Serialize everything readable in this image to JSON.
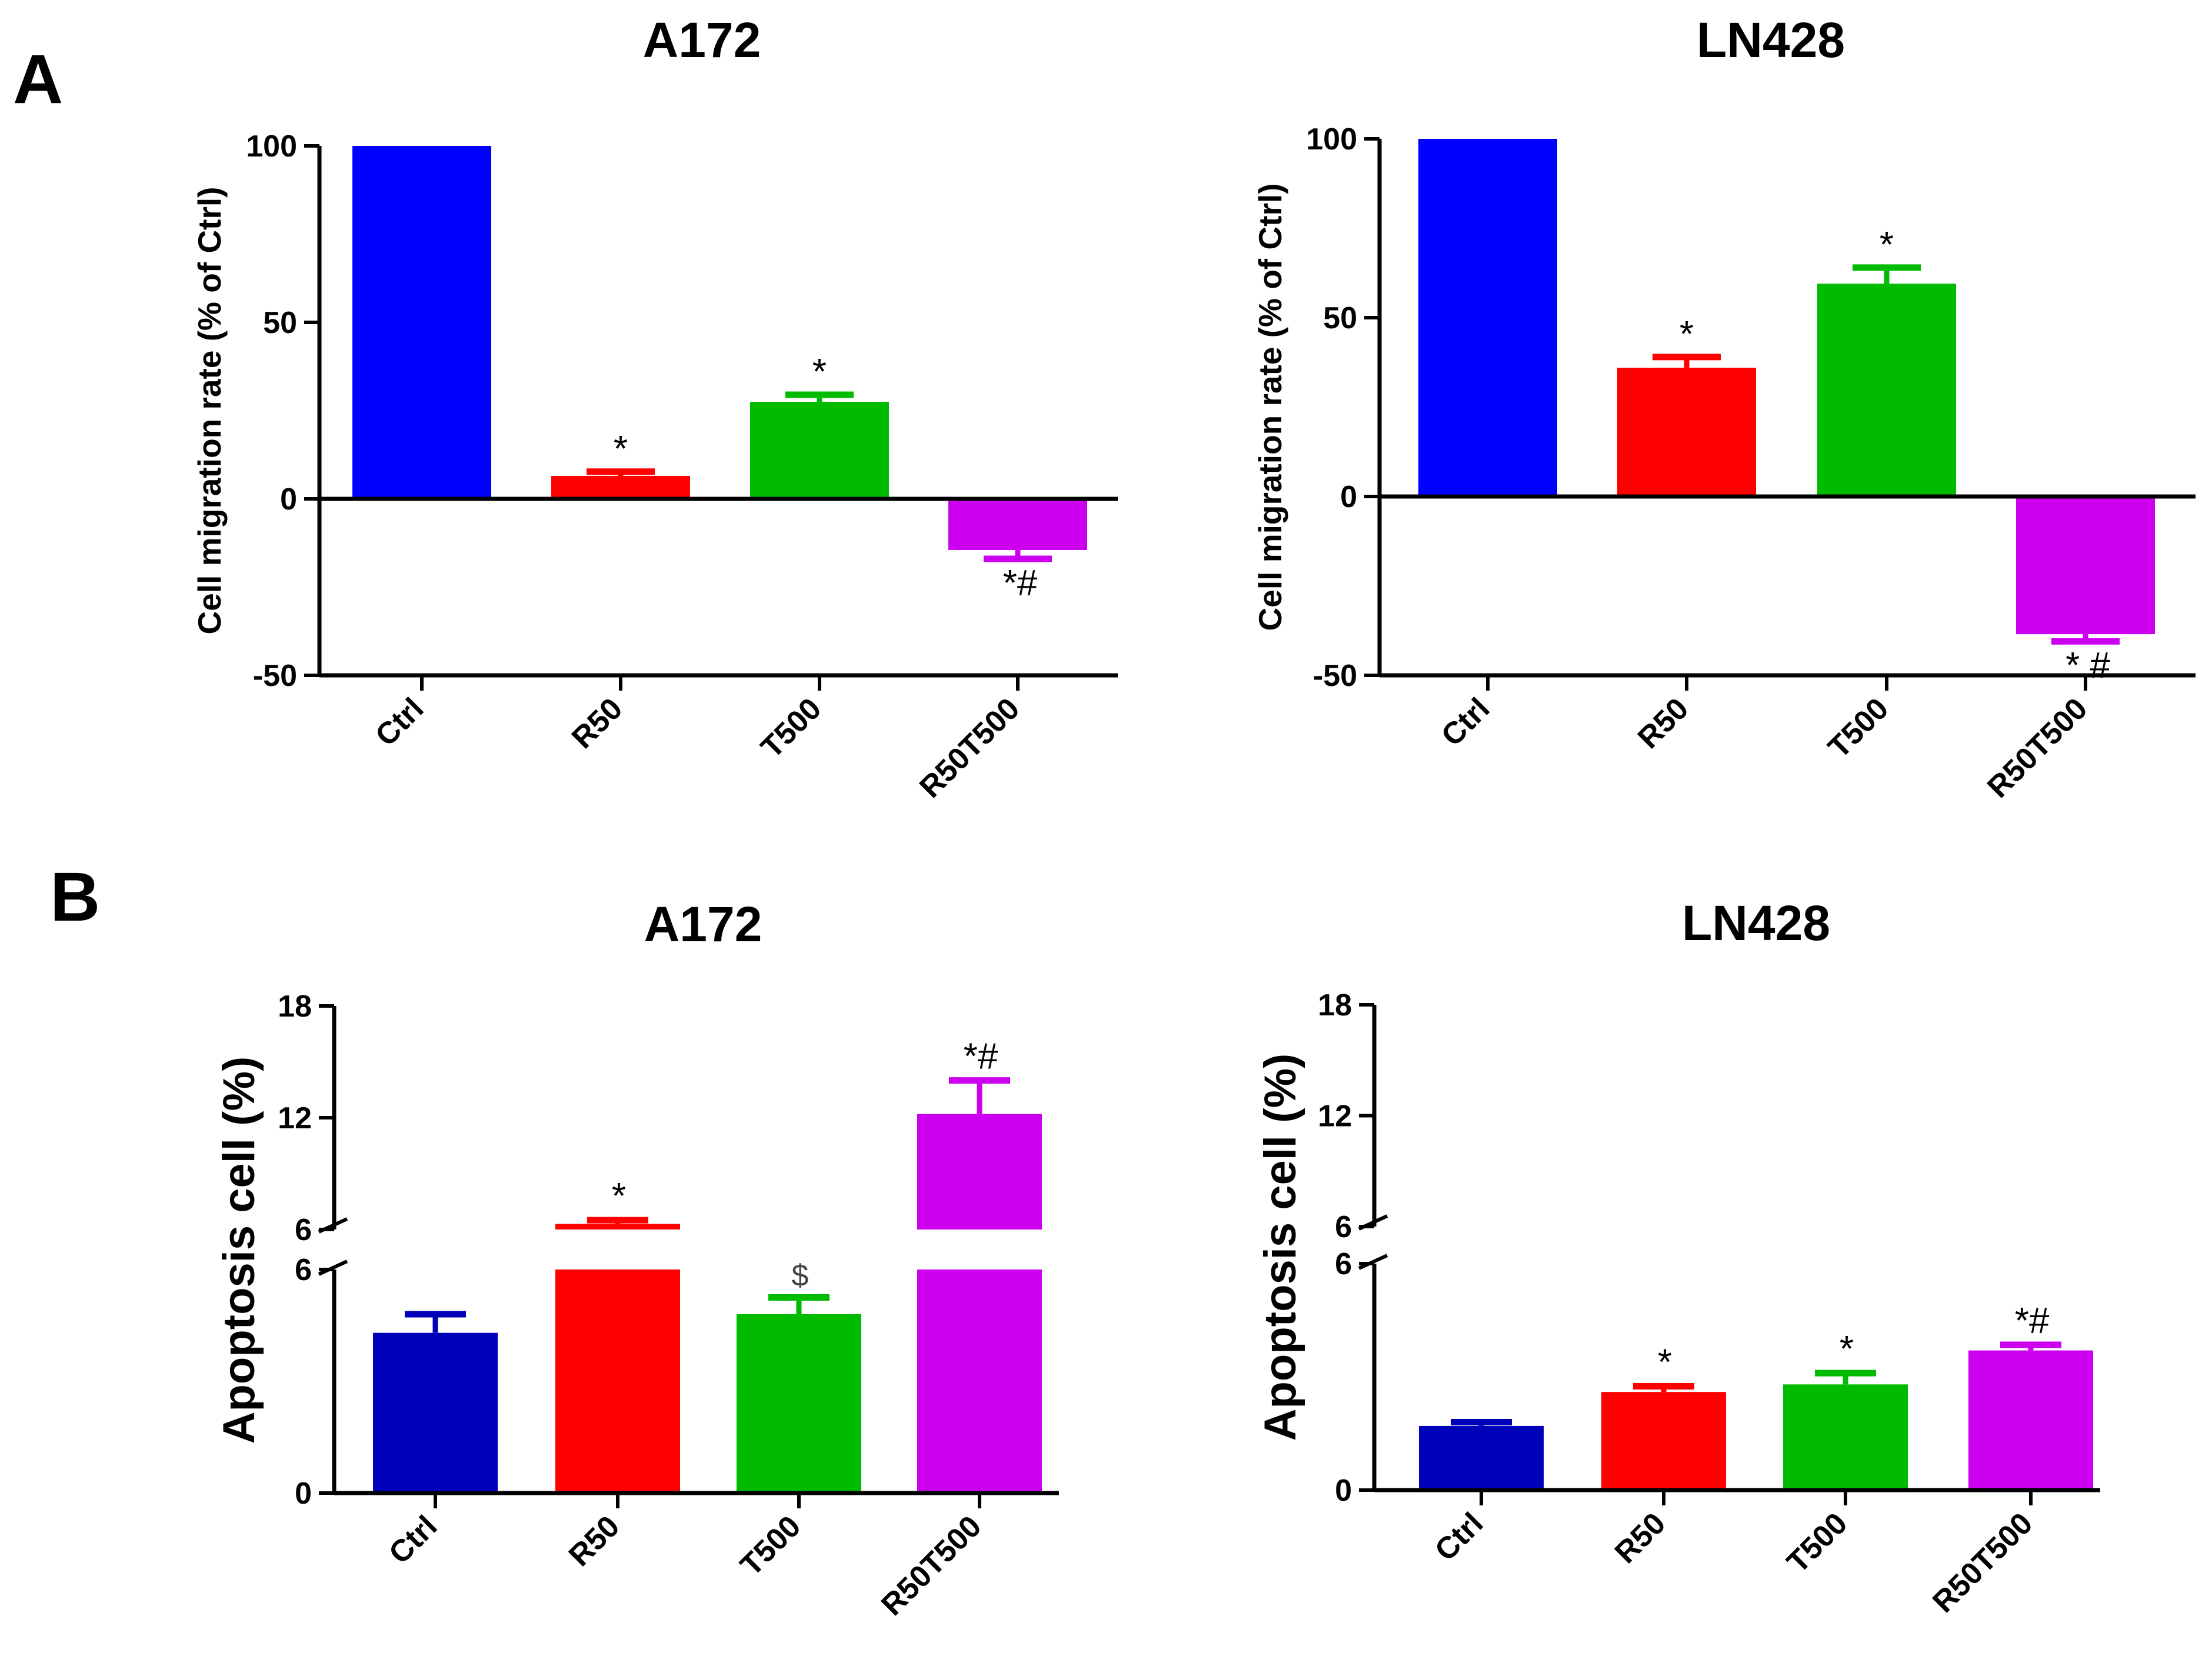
{
  "panels": [
    {
      "letter": "A"
    },
    {
      "letter": "B"
    }
  ],
  "chart_data": [
    {
      "type": "bar",
      "panel": "A",
      "title": "A172",
      "ylabel": "Cell migration rate (% of Ctrl)",
      "ylim": [
        -50,
        100
      ],
      "yticks": [
        -50,
        0,
        50,
        100
      ],
      "categories": [
        "Ctrl",
        "R50",
        "T500",
        "R50T500"
      ],
      "values": [
        100,
        6.5,
        27.5,
        -14.5
      ],
      "errors": [
        0,
        1.2,
        2,
        2.5
      ],
      "colors": [
        "#0000ff",
        "#ff0000",
        "#00bb00",
        "#cc00ee"
      ],
      "annotations": [
        "",
        "*",
        "*",
        "*#"
      ]
    },
    {
      "type": "bar",
      "panel": "A",
      "title": "LN428",
      "ylabel": "Cell migration rate (% of Ctrl)",
      "ylim": [
        -50,
        100
      ],
      "yticks": [
        -50,
        0,
        50,
        100
      ],
      "categories": [
        "Ctrl",
        "R50",
        "T500",
        "R50T500"
      ],
      "values": [
        100,
        36,
        59.5,
        -38.5
      ],
      "errors": [
        0,
        3,
        4.5,
        2
      ],
      "colors": [
        "#0000ff",
        "#ff0000",
        "#00bb00",
        "#cc00ee"
      ],
      "annotations": [
        "",
        "*",
        "*",
        "* #"
      ]
    },
    {
      "type": "bar",
      "panel": "B",
      "title": "A172",
      "ylabel": "Apoptosis cell (%)",
      "ylim": [
        0,
        18
      ],
      "axis_break": {
        "lower_max": 6,
        "upper_min": 6
      },
      "yticks_lower": [
        0,
        6
      ],
      "yticks_upper": [
        6,
        12,
        18
      ],
      "categories": [
        "Ctrl",
        "R50",
        "T500",
        "R50T500"
      ],
      "values": [
        4.3,
        6.3,
        4.8,
        12.2
      ],
      "errors": [
        0.5,
        0.2,
        0.45,
        1.8
      ],
      "colors": [
        "#0000bb",
        "#ff0000",
        "#00bb00",
        "#cc00ee"
      ],
      "annotations": [
        "",
        "*",
        "$",
        "*#"
      ]
    },
    {
      "type": "bar",
      "panel": "B",
      "title": "LN428",
      "ylabel": "Apoptosis cell (%)",
      "ylim": [
        0,
        18
      ],
      "axis_break": {
        "lower_max": 6,
        "upper_min": 6
      },
      "yticks_lower": [
        0,
        6
      ],
      "yticks_upper": [
        6,
        12,
        18
      ],
      "categories": [
        "Ctrl",
        "R50",
        "T500",
        "R50T500"
      ],
      "values": [
        1.7,
        2.6,
        2.8,
        3.7
      ],
      "errors": [
        0.1,
        0.15,
        0.3,
        0.15
      ],
      "colors": [
        "#0000bb",
        "#ff0000",
        "#00bb00",
        "#cc00ee"
      ],
      "annotations": [
        "",
        "*",
        "*",
        "*#"
      ]
    }
  ]
}
